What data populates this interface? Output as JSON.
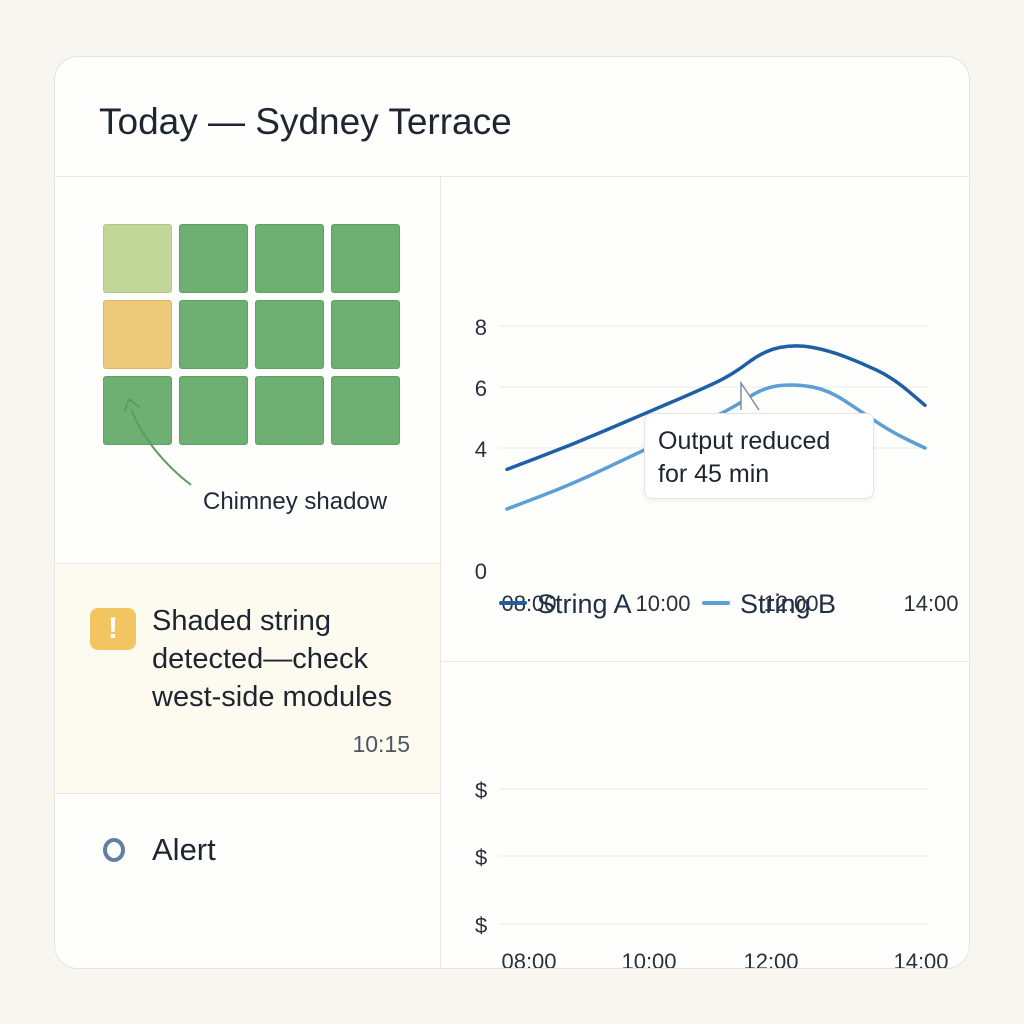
{
  "header": {
    "title": "Today — Sydney Terrace"
  },
  "array": {
    "rows": [
      [
        "light",
        "green",
        "green",
        "green"
      ],
      [
        "amber",
        "green",
        "green",
        "green"
      ],
      [
        "green",
        "green",
        "green",
        "green"
      ]
    ],
    "annotation": "Chimney shadow",
    "colors": {
      "green": "#6db071",
      "light": "#c2d698",
      "amber": "#edc97a",
      "arrow": "#5a9e5f"
    }
  },
  "alert_banner": {
    "icon": "warning-icon",
    "icon_glyph": "!",
    "message": "Shaded string detected—check west-side modules",
    "time": "10:15"
  },
  "alert_item": {
    "icon": "circle-icon",
    "label": "Alert"
  },
  "chart_data": [
    {
      "type": "line",
      "x": [
        "08:00",
        "09:00",
        "10:00",
        "11:00",
        "11:30",
        "12:00",
        "12:30",
        "13:00",
        "13:30",
        "14:00",
        "14:30"
      ],
      "xticks": [
        "08:00",
        "10:00",
        "12:00",
        "14:00"
      ],
      "yticks": [
        0,
        4,
        6,
        8
      ],
      "ylim": [
        0,
        8
      ],
      "series": [
        {
          "name": "String A",
          "color": "#1f5fa6",
          "values": [
            3.3,
            4.1,
            5.0,
            5.9,
            6.4,
            7.2,
            7.4,
            7.2,
            6.8,
            6.3,
            5.4
          ]
        },
        {
          "name": "String B",
          "color": "#5b9fd6",
          "values": [
            2.0,
            2.8,
            3.8,
            4.8,
            5.3,
            6.0,
            6.1,
            5.9,
            5.2,
            4.5,
            4.0
          ]
        }
      ],
      "annotation": "Output reduced for 45 min",
      "grid": true,
      "legend": "bottom"
    },
    {
      "type": "line",
      "xticks": [
        "08:00",
        "10:00",
        "12:00",
        "14:00"
      ],
      "ytick_labels": [
        "$",
        "$",
        "$"
      ],
      "series": [],
      "grid": true
    }
  ]
}
